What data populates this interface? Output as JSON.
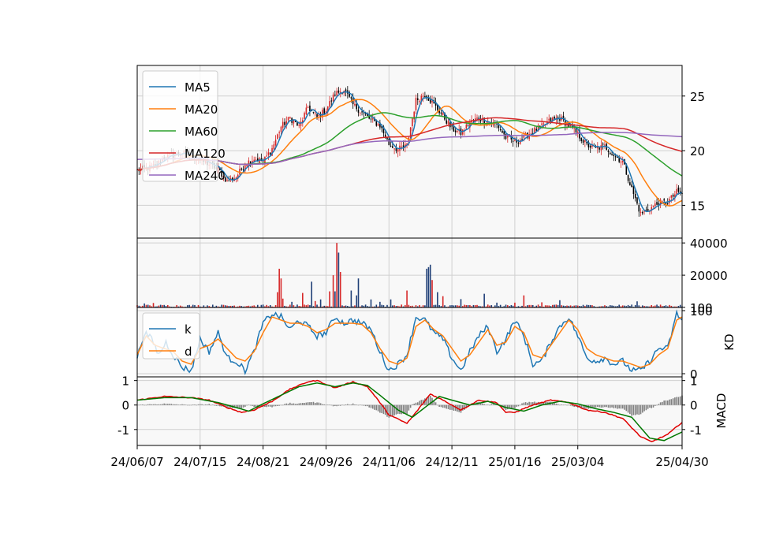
{
  "chart_data": {
    "type": "line",
    "panels": {
      "price": {
        "yticks": [
          15,
          20,
          25
        ],
        "ylim": [
          12,
          27.8
        ],
        "legend": [
          "MA5",
          "MA20",
          "MA60",
          "MA120",
          "MA240"
        ],
        "legend_position": "upper-left",
        "grid": true,
        "close_keypoints": [
          [
            0,
            18.2
          ],
          [
            10,
            18.6
          ],
          [
            15,
            19.4
          ],
          [
            25,
            19.8
          ],
          [
            35,
            19.2
          ],
          [
            45,
            18.3
          ],
          [
            50,
            17.2
          ],
          [
            55,
            17.6
          ],
          [
            60,
            18.8
          ],
          [
            65,
            19.3
          ],
          [
            70,
            19.0
          ],
          [
            75,
            20.2
          ],
          [
            80,
            22.2
          ],
          [
            85,
            23.0
          ],
          [
            90,
            22.2
          ],
          [
            95,
            24.0
          ],
          [
            100,
            23.0
          ],
          [
            105,
            23.8
          ],
          [
            110,
            25.2
          ],
          [
            115,
            25.6
          ],
          [
            120,
            24.2
          ],
          [
            125,
            23.5
          ],
          [
            130,
            22.8
          ],
          [
            135,
            22.3
          ],
          [
            140,
            20.6
          ],
          [
            145,
            20.1
          ],
          [
            150,
            20.5
          ],
          [
            155,
            24.6
          ],
          [
            160,
            25.2
          ],
          [
            165,
            24.2
          ],
          [
            170,
            23.2
          ],
          [
            175,
            22.0
          ],
          [
            180,
            21.6
          ],
          [
            185,
            22.6
          ],
          [
            190,
            23.0
          ],
          [
            195,
            22.6
          ],
          [
            200,
            22.4
          ],
          [
            205,
            21.2
          ],
          [
            210,
            20.8
          ],
          [
            215,
            21.2
          ],
          [
            220,
            21.8
          ],
          [
            225,
            22.2
          ],
          [
            230,
            22.8
          ],
          [
            235,
            23.0
          ],
          [
            240,
            22.3
          ],
          [
            245,
            21.5
          ],
          [
            250,
            20.5
          ],
          [
            255,
            20.2
          ],
          [
            260,
            20.4
          ],
          [
            265,
            19.6
          ],
          [
            270,
            19.0
          ],
          [
            275,
            16.5
          ],
          [
            280,
            14.2
          ],
          [
            285,
            14.7
          ],
          [
            290,
            15.2
          ],
          [
            295,
            15.3
          ],
          [
            300,
            16.2
          ],
          [
            303,
            16.0
          ]
        ],
        "ma_colors": [
          "#1f77b4",
          "#ff7f0e",
          "#2ca02c",
          "#d62728",
          "#9467bd"
        ]
      },
      "volume": {
        "yticks": [
          100,
          20000,
          40000
        ],
        "ylim": [
          0,
          43000
        ],
        "spikes": [
          [
            4,
            2500
          ],
          [
            9,
            2800
          ],
          [
            78,
            9500
          ],
          [
            79,
            24000
          ],
          [
            80,
            18000
          ],
          [
            81,
            5500
          ],
          [
            86,
            3500
          ],
          [
            92,
            9000
          ],
          [
            97,
            16000
          ],
          [
            99,
            4000
          ],
          [
            102,
            5000
          ],
          [
            107,
            10000
          ],
          [
            109,
            20000
          ],
          [
            110,
            10000
          ],
          [
            111,
            40000
          ],
          [
            112,
            34000
          ],
          [
            113,
            22000
          ],
          [
            119,
            10500
          ],
          [
            122,
            7500
          ],
          [
            123,
            18000
          ],
          [
            130,
            5000
          ],
          [
            135,
            3500
          ],
          [
            141,
            5000
          ],
          [
            150,
            10500
          ],
          [
            161,
            24000
          ],
          [
            162,
            25000
          ],
          [
            163,
            26500
          ],
          [
            164,
            17000
          ],
          [
            167,
            9500
          ],
          [
            170,
            7000
          ],
          [
            180,
            5200
          ],
          [
            193,
            8500
          ],
          [
            200,
            3000
          ],
          [
            210,
            3000
          ],
          [
            215,
            7500
          ],
          [
            225,
            3200
          ],
          [
            235,
            4500
          ],
          [
            278,
            3800
          ]
        ]
      },
      "kd": {
        "ylabel": "KD",
        "yticks": [
          0,
          100
        ],
        "ylim": [
          -5,
          105
        ],
        "legend": [
          "k",
          "d"
        ],
        "legend_position": "upper-left",
        "k_keypoints": [
          [
            0,
            25
          ],
          [
            4,
            65
          ],
          [
            8,
            55
          ],
          [
            12,
            30
          ],
          [
            16,
            50
          ],
          [
            20,
            30
          ],
          [
            25,
            10
          ],
          [
            30,
            5
          ],
          [
            35,
            55
          ],
          [
            40,
            35
          ],
          [
            45,
            65
          ],
          [
            50,
            25
          ],
          [
            55,
            20
          ],
          [
            60,
            5
          ],
          [
            65,
            35
          ],
          [
            70,
            80
          ],
          [
            75,
            95
          ],
          [
            80,
            90
          ],
          [
            85,
            70
          ],
          [
            90,
            85
          ],
          [
            95,
            75
          ],
          [
            100,
            60
          ],
          [
            105,
            65
          ],
          [
            110,
            90
          ],
          [
            115,
            80
          ],
          [
            120,
            85
          ],
          [
            125,
            80
          ],
          [
            130,
            70
          ],
          [
            135,
            35
          ],
          [
            140,
            5
          ],
          [
            145,
            15
          ],
          [
            150,
            30
          ],
          [
            155,
            90
          ],
          [
            160,
            85
          ],
          [
            165,
            65
          ],
          [
            170,
            55
          ],
          [
            175,
            25
          ],
          [
            180,
            5
          ],
          [
            185,
            35
          ],
          [
            190,
            60
          ],
          [
            195,
            75
          ],
          [
            200,
            35
          ],
          [
            205,
            55
          ],
          [
            210,
            85
          ],
          [
            215,
            60
          ],
          [
            220,
            15
          ],
          [
            225,
            20
          ],
          [
            230,
            50
          ],
          [
            235,
            75
          ],
          [
            240,
            90
          ],
          [
            245,
            60
          ],
          [
            250,
            25
          ],
          [
            255,
            20
          ],
          [
            260,
            25
          ],
          [
            265,
            15
          ],
          [
            270,
            20
          ],
          [
            275,
            5
          ],
          [
            280,
            5
          ],
          [
            285,
            20
          ],
          [
            290,
            40
          ],
          [
            295,
            40
          ],
          [
            300,
            95
          ],
          [
            303,
            85
          ]
        ],
        "d_keypoints": [
          [
            0,
            30
          ],
          [
            5,
            60
          ],
          [
            10,
            45
          ],
          [
            15,
            40
          ],
          [
            20,
            35
          ],
          [
            25,
            20
          ],
          [
            30,
            15
          ],
          [
            35,
            40
          ],
          [
            40,
            45
          ],
          [
            45,
            55
          ],
          [
            50,
            40
          ],
          [
            55,
            25
          ],
          [
            60,
            20
          ],
          [
            65,
            35
          ],
          [
            70,
            65
          ],
          [
            75,
            90
          ],
          [
            80,
            85
          ],
          [
            85,
            80
          ],
          [
            90,
            80
          ],
          [
            95,
            75
          ],
          [
            100,
            65
          ],
          [
            105,
            70
          ],
          [
            110,
            80
          ],
          [
            115,
            80
          ],
          [
            120,
            80
          ],
          [
            125,
            78
          ],
          [
            130,
            65
          ],
          [
            135,
            40
          ],
          [
            140,
            20
          ],
          [
            145,
            15
          ],
          [
            150,
            25
          ],
          [
            155,
            75
          ],
          [
            160,
            85
          ],
          [
            165,
            70
          ],
          [
            170,
            60
          ],
          [
            175,
            40
          ],
          [
            180,
            20
          ],
          [
            185,
            30
          ],
          [
            190,
            50
          ],
          [
            195,
            70
          ],
          [
            200,
            45
          ],
          [
            205,
            50
          ],
          [
            210,
            75
          ],
          [
            215,
            65
          ],
          [
            220,
            30
          ],
          [
            225,
            25
          ],
          [
            230,
            45
          ],
          [
            235,
            65
          ],
          [
            240,
            85
          ],
          [
            245,
            70
          ],
          [
            250,
            40
          ],
          [
            255,
            30
          ],
          [
            260,
            25
          ],
          [
            265,
            20
          ],
          [
            270,
            20
          ],
          [
            275,
            15
          ],
          [
            280,
            10
          ],
          [
            285,
            15
          ],
          [
            290,
            30
          ],
          [
            295,
            40
          ],
          [
            300,
            85
          ],
          [
            303,
            90
          ]
        ]
      },
      "macd": {
        "ylabel": "MACD",
        "yticks": [
          -1,
          0,
          1
        ],
        "ylim": [
          -1.65,
          1.15
        ],
        "macd_keypoints": [
          [
            0,
            0.2
          ],
          [
            15,
            0.35
          ],
          [
            30,
            0.3
          ],
          [
            40,
            0.2
          ],
          [
            50,
            -0.1
          ],
          [
            58,
            -0.3
          ],
          [
            65,
            -0.2
          ],
          [
            75,
            0.15
          ],
          [
            85,
            0.65
          ],
          [
            95,
            0.95
          ],
          [
            100,
            1.0
          ],
          [
            110,
            0.7
          ],
          [
            120,
            0.95
          ],
          [
            128,
            0.75
          ],
          [
            135,
            0.1
          ],
          [
            140,
            -0.4
          ],
          [
            150,
            -0.75
          ],
          [
            155,
            -0.3
          ],
          [
            163,
            0.45
          ],
          [
            170,
            0.2
          ],
          [
            180,
            -0.2
          ],
          [
            190,
            0.2
          ],
          [
            200,
            0.1
          ],
          [
            205,
            -0.3
          ],
          [
            210,
            -0.3
          ],
          [
            220,
            0.0
          ],
          [
            230,
            0.2
          ],
          [
            240,
            0.1
          ],
          [
            250,
            -0.2
          ],
          [
            260,
            -0.3
          ],
          [
            270,
            -0.55
          ],
          [
            280,
            -1.3
          ],
          [
            286,
            -1.5
          ],
          [
            295,
            -1.2
          ],
          [
            303,
            -0.7
          ]
        ],
        "signal_keypoints": [
          [
            0,
            0.2
          ],
          [
            15,
            0.3
          ],
          [
            30,
            0.3
          ],
          [
            45,
            0.1
          ],
          [
            55,
            -0.1
          ],
          [
            62,
            -0.25
          ],
          [
            70,
            0.05
          ],
          [
            80,
            0.4
          ],
          [
            90,
            0.75
          ],
          [
            100,
            0.9
          ],
          [
            110,
            0.75
          ],
          [
            120,
            0.9
          ],
          [
            128,
            0.8
          ],
          [
            135,
            0.4
          ],
          [
            145,
            -0.2
          ],
          [
            153,
            -0.5
          ],
          [
            160,
            -0.1
          ],
          [
            168,
            0.35
          ],
          [
            175,
            0.2
          ],
          [
            185,
            0.0
          ],
          [
            195,
            0.15
          ],
          [
            205,
            -0.1
          ],
          [
            215,
            -0.25
          ],
          [
            225,
            0.0
          ],
          [
            235,
            0.15
          ],
          [
            245,
            0.05
          ],
          [
            255,
            -0.15
          ],
          [
            265,
            -0.3
          ],
          [
            275,
            -0.5
          ],
          [
            285,
            -1.35
          ],
          [
            293,
            -1.45
          ],
          [
            303,
            -1.1
          ]
        ],
        "colors": {
          "macd": "#e00000",
          "signal": "#007800",
          "hist": "#808080"
        }
      }
    },
    "x_tick_labels": [
      "24/06/07",
      "24/07/15",
      "24/08/21",
      "24/09/26",
      "24/11/06",
      "24/12/11",
      "25/01/16",
      "25/03/04",
      "25/04/30"
    ],
    "x_tick_indices": [
      0,
      35,
      70,
      105,
      140,
      175,
      210,
      245,
      303
    ],
    "n_points": 304
  }
}
